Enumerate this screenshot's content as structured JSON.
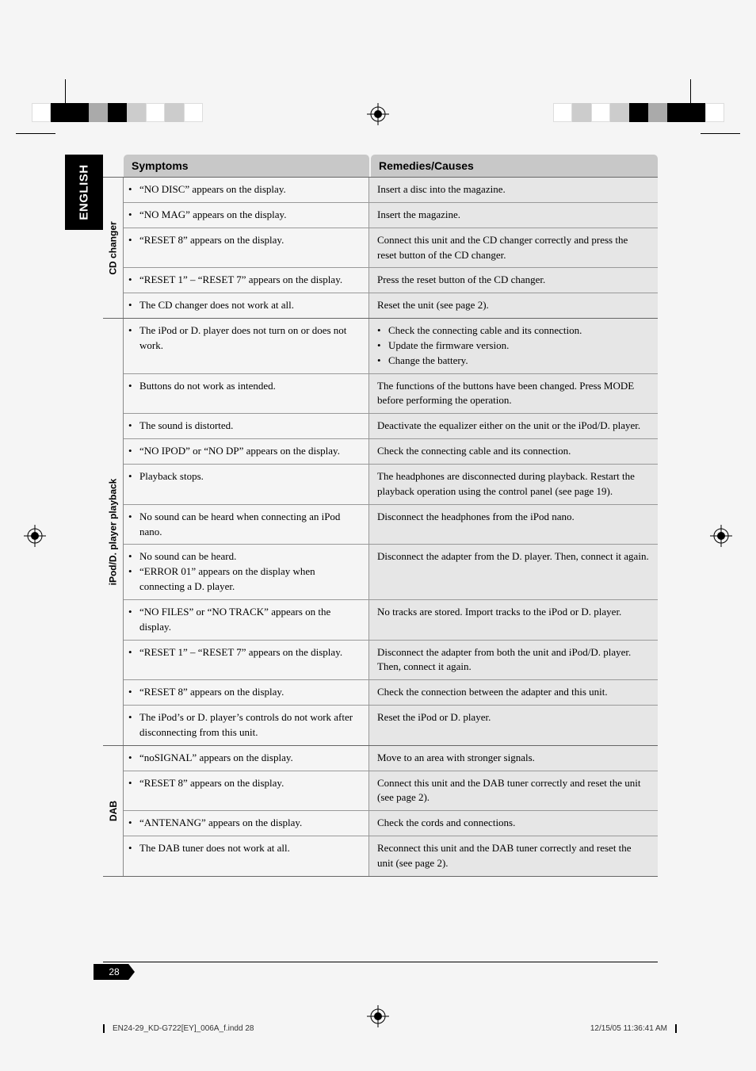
{
  "side_tab": "ENGLISH",
  "headers": {
    "symptoms": "Symptoms",
    "remedies": "Remedies/Causes"
  },
  "sections": [
    {
      "category": "CD changer",
      "rows": [
        {
          "sym_bullets": [
            "“NO DISC” appears on the display."
          ],
          "rem_lines": [
            "Insert a disc into the magazine."
          ]
        },
        {
          "sym_bullets": [
            "“NO MAG” appears on the display."
          ],
          "rem_lines": [
            "Insert the magazine."
          ]
        },
        {
          "sym_bullets": [
            "“RESET 8” appears on the display."
          ],
          "rem_lines": [
            "Connect this unit and the CD changer correctly and press the reset button of the CD changer."
          ]
        },
        {
          "sym_bullets": [
            "“RESET 1” – “RESET 7” appears on the display."
          ],
          "rem_lines": [
            "Press the reset button of the CD changer."
          ]
        },
        {
          "sym_bullets": [
            "The CD changer does not work at all."
          ],
          "rem_lines": [
            "Reset the unit (see page 2)."
          ]
        }
      ]
    },
    {
      "category": "iPod/D. player playback",
      "rows": [
        {
          "sym_bullets": [
            "The iPod or D. player does not turn on or does not work."
          ],
          "rem_bullets": [
            "Check the connecting cable and its connection.",
            "Update the firmware version.",
            "Change the battery."
          ]
        },
        {
          "sym_bullets": [
            "Buttons do not work as intended."
          ],
          "rem_lines": [
            "The functions of the buttons have been changed. Press MODE before performing the operation."
          ]
        },
        {
          "sym_bullets": [
            "The sound is distorted."
          ],
          "rem_lines": [
            "Deactivate the equalizer either on the unit or the iPod/D. player."
          ]
        },
        {
          "sym_bullets": [
            "“NO IPOD” or “NO DP” appears on the display."
          ],
          "rem_lines": [
            "Check the connecting cable and its connection."
          ]
        },
        {
          "sym_bullets": [
            "Playback stops."
          ],
          "rem_lines": [
            "The headphones are disconnected during playback. Restart the playback operation using the control panel (see page 19)."
          ]
        },
        {
          "sym_bullets": [
            "No sound can be heard when connecting an iPod nano."
          ],
          "rem_lines": [
            "Disconnect the headphones from the iPod nano."
          ]
        },
        {
          "sym_bullets": [
            "No sound can be heard.",
            "“ERROR 01” appears on the display when connecting a D. player."
          ],
          "rem_lines": [
            "Disconnect the adapter from the D. player. Then, connect it again."
          ]
        },
        {
          "sym_bullets": [
            "“NO FILES” or “NO TRACK” appears on the display."
          ],
          "rem_lines": [
            "No tracks are stored. Import tracks to the iPod or D. player."
          ]
        },
        {
          "sym_bullets": [
            "“RESET 1” – “RESET 7” appears on the display."
          ],
          "rem_lines": [
            "Disconnect the adapter from both the unit and iPod/D. player. Then, connect it again."
          ]
        },
        {
          "sym_bullets": [
            "“RESET 8” appears on the display."
          ],
          "rem_lines": [
            "Check the connection between the adapter and this unit."
          ]
        },
        {
          "sym_bullets": [
            "The iPod’s or D. player’s controls do not work after disconnecting from this unit."
          ],
          "rem_lines": [
            "Reset the iPod or D. player."
          ]
        }
      ]
    },
    {
      "category": "DAB",
      "rows": [
        {
          "sym_bullets": [
            "“noSIGNAL” appears on the display."
          ],
          "rem_lines": [
            "Move to an area with stronger signals."
          ]
        },
        {
          "sym_bullets": [
            "“RESET 8” appears on the display."
          ],
          "rem_lines": [
            "Connect this unit and the DAB tuner correctly and reset the unit (see page 2)."
          ]
        },
        {
          "sym_bullets": [
            "“ANTENANG” appears on the display."
          ],
          "rem_lines": [
            "Check the cords and connections."
          ]
        },
        {
          "sym_bullets": [
            "The DAB tuner does not work at all."
          ],
          "rem_lines": [
            "Reconnect this unit and the DAB tuner correctly and reset the unit (see page 2)."
          ]
        }
      ]
    }
  ],
  "page_number": "28",
  "footer": {
    "left": "EN24-29_KD-G722[EY]_006A_f.indd   28",
    "right": "12/15/05   11:36:41 AM"
  }
}
